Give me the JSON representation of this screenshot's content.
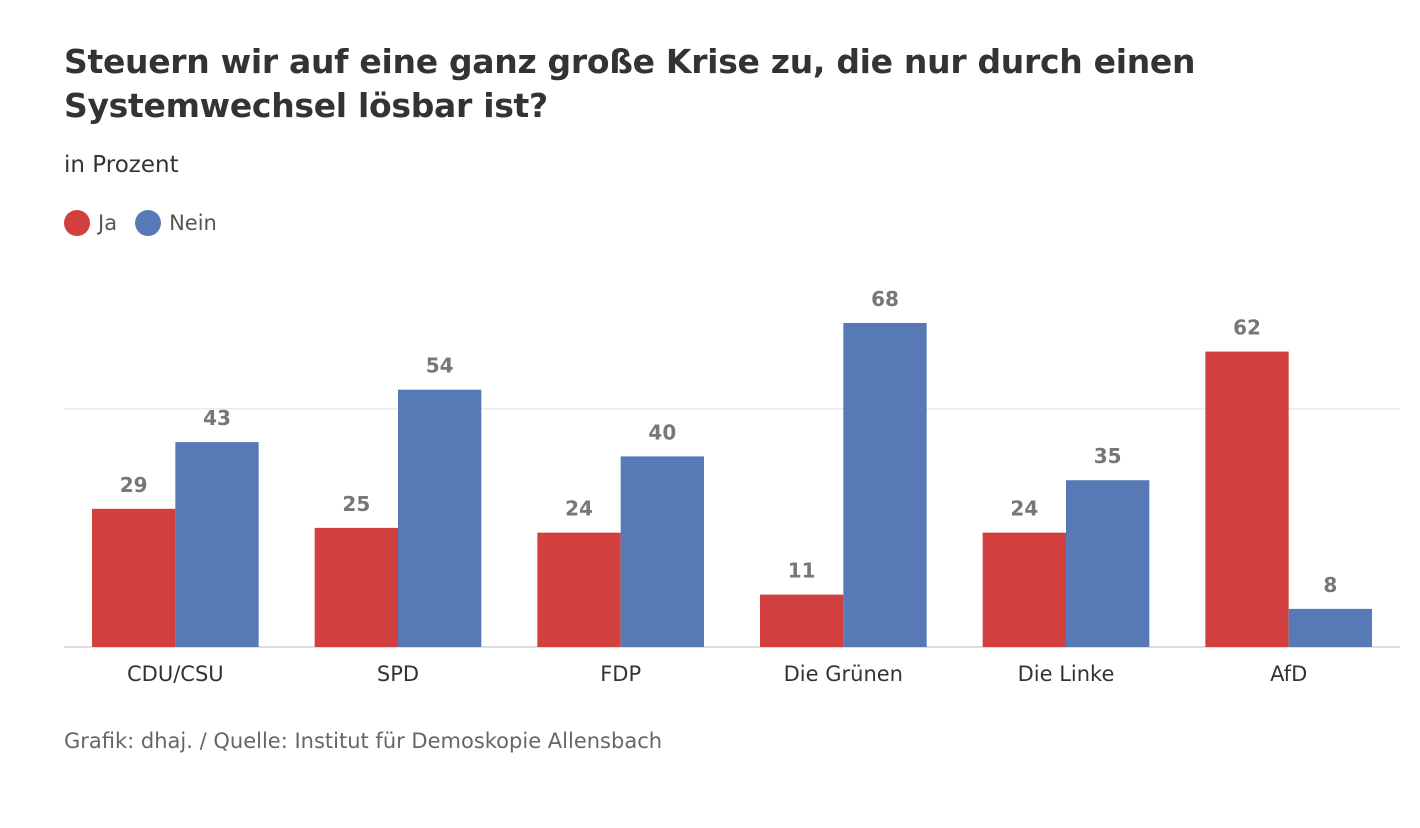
{
  "chart_data": {
    "type": "bar",
    "title": "Steuern wir auf eine ganz große Krise zu, die nur durch einen Systemwechsel lösbar ist?",
    "subtitle": "in Prozent",
    "categories": [
      "CDU/CSU",
      "SPD",
      "FDP",
      "Die Grünen",
      "Die Linke",
      "AfD"
    ],
    "series": [
      {
        "name": "Ja",
        "color": "#d13f3f",
        "values": [
          29,
          25,
          24,
          11,
          24,
          62
        ]
      },
      {
        "name": "Nein",
        "color": "#5779b6",
        "values": [
          43,
          54,
          40,
          68,
          35,
          8
        ]
      }
    ],
    "xlabel": "",
    "ylabel": "",
    "ylim": [
      0,
      68
    ],
    "gridlines": [
      0,
      50
    ],
    "grid": true,
    "legend": "top-left",
    "source": "Grafik: dhaj. / Quelle: Institut für Demoskopie Allensbach"
  }
}
